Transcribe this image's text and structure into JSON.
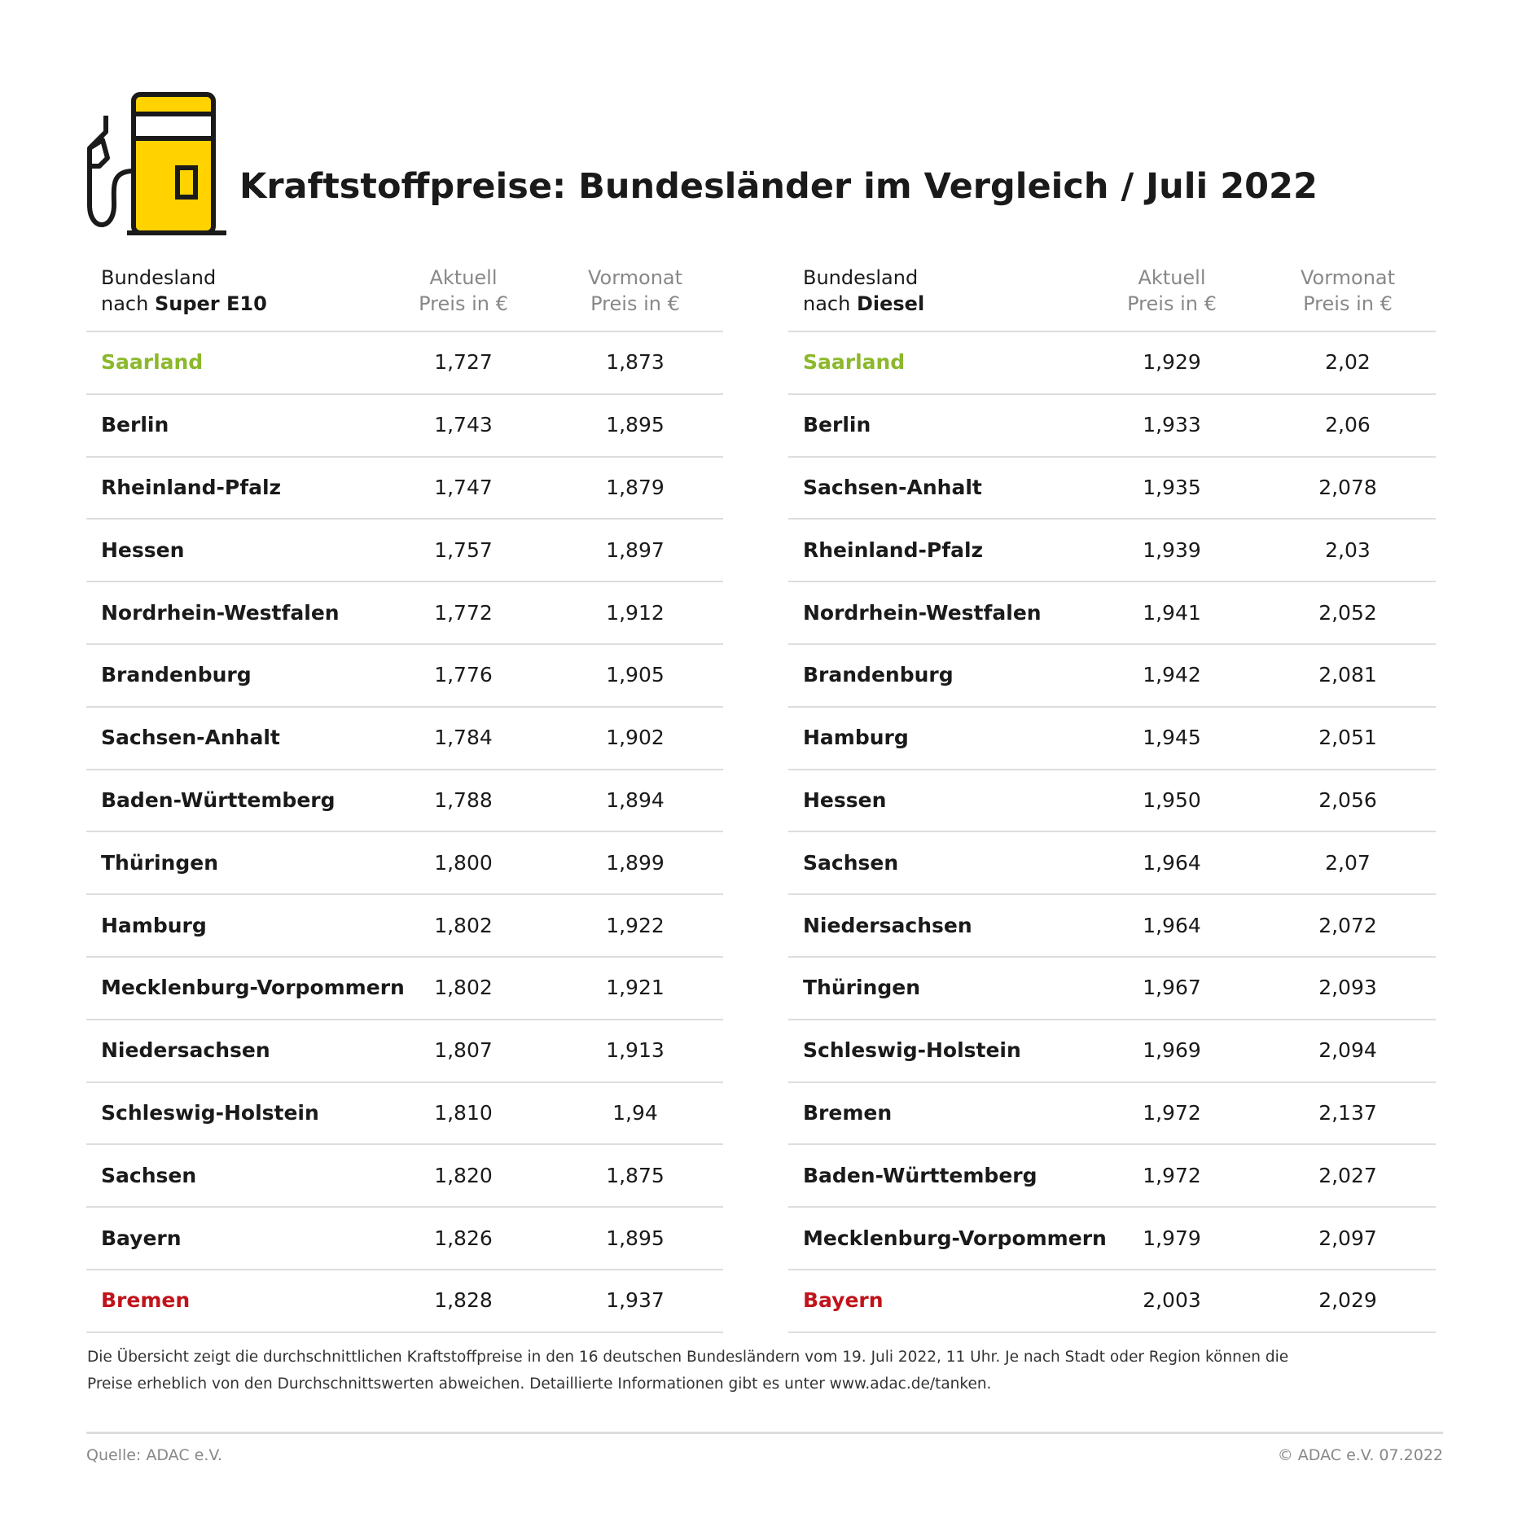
{
  "header": {
    "title": "Kraftstoffpreise: Bundesländer im Vergleich / Juli 2022"
  },
  "tables": [
    {
      "columns": [
        [
          "Bundesland",
          "nach",
          "Super E10"
        ],
        [
          "Aktuell",
          "Preis in €"
        ],
        [
          "Vormonat",
          "Preis in €"
        ]
      ],
      "rows": [
        [
          "Saarland",
          "1,727",
          "1,873"
        ],
        [
          "Berlin",
          "1,743",
          "1,895"
        ],
        [
          "Rheinland-Pfalz",
          "1,747",
          "1,879"
        ],
        [
          "Hessen",
          "1,757",
          "1,897"
        ],
        [
          "Nordrhein-Westfalen",
          "1,772",
          "1,912"
        ],
        [
          "Brandenburg",
          "1,776",
          "1,905"
        ],
        [
          "Sachsen-Anhalt",
          "1,784",
          "1,902"
        ],
        [
          "Baden-Württemberg",
          "1,788",
          "1,894"
        ],
        [
          "Thüringen",
          "1,800",
          "1,899"
        ],
        [
          "Hamburg",
          "1,802",
          "1,922"
        ],
        [
          "Mecklenburg-Vorpommern",
          "1,802",
          "1,921"
        ],
        [
          "Niedersachsen",
          "1,807",
          "1,913"
        ],
        [
          "Schleswig-Holstein",
          "1,810",
          "1,94"
        ],
        [
          "Sachsen",
          "1,820",
          "1,875"
        ],
        [
          "Bayern",
          "1,826",
          "1,895"
        ],
        [
          "Bremen",
          "1,828",
          "1,937"
        ]
      ]
    },
    {
      "columns": [
        [
          "Bundesland",
          "nach",
          "Diesel"
        ],
        [
          "Aktuell",
          "Preis in €"
        ],
        [
          "Vormonat",
          "Preis in €"
        ]
      ],
      "rows": [
        [
          "Saarland",
          "1,929",
          "2,02"
        ],
        [
          "Berlin",
          "1,933",
          "2,06"
        ],
        [
          "Sachsen-Anhalt",
          "1,935",
          "2,078"
        ],
        [
          "Rheinland-Pfalz",
          "1,939",
          "2,03"
        ],
        [
          "Nordrhein-Westfalen",
          "1,941",
          "2,052"
        ],
        [
          "Brandenburg",
          "1,942",
          "2,081"
        ],
        [
          "Hamburg",
          "1,945",
          "2,051"
        ],
        [
          "Hessen",
          "1,950",
          "2,056"
        ],
        [
          "Sachsen",
          "1,964",
          "2,07"
        ],
        [
          "Niedersachsen",
          "1,964",
          "2,072"
        ],
        [
          "Thüringen",
          "1,967",
          "2,093"
        ],
        [
          "Schleswig-Holstein",
          "1,969",
          "2,094"
        ],
        [
          "Bremen",
          "1,972",
          "2,137"
        ],
        [
          "Baden-Württemberg",
          "1,972",
          "2,027"
        ],
        [
          "Mecklenburg-Vorpommern",
          "1,979",
          "2,097"
        ],
        [
          "Bayern",
          "2,003",
          "2,029"
        ]
      ]
    }
  ],
  "note": [
    "Die Übersicht zeigt die durchschnittlichen Kraftstoffpreise in den 16 deutschen Bundesländern vom 19. Juli 2022, 11 Uhr. Je nach Stadt oder Region können die",
    "Preise erheblich von den Durchschnittswerten abweichen. Detaillierte Informationen gibt es unter www.adac.de/tanken."
  ],
  "footer": {
    "source": "Quelle: ADAC e.V.",
    "copyright": "© ADAC e.V. 07.2022"
  }
}
